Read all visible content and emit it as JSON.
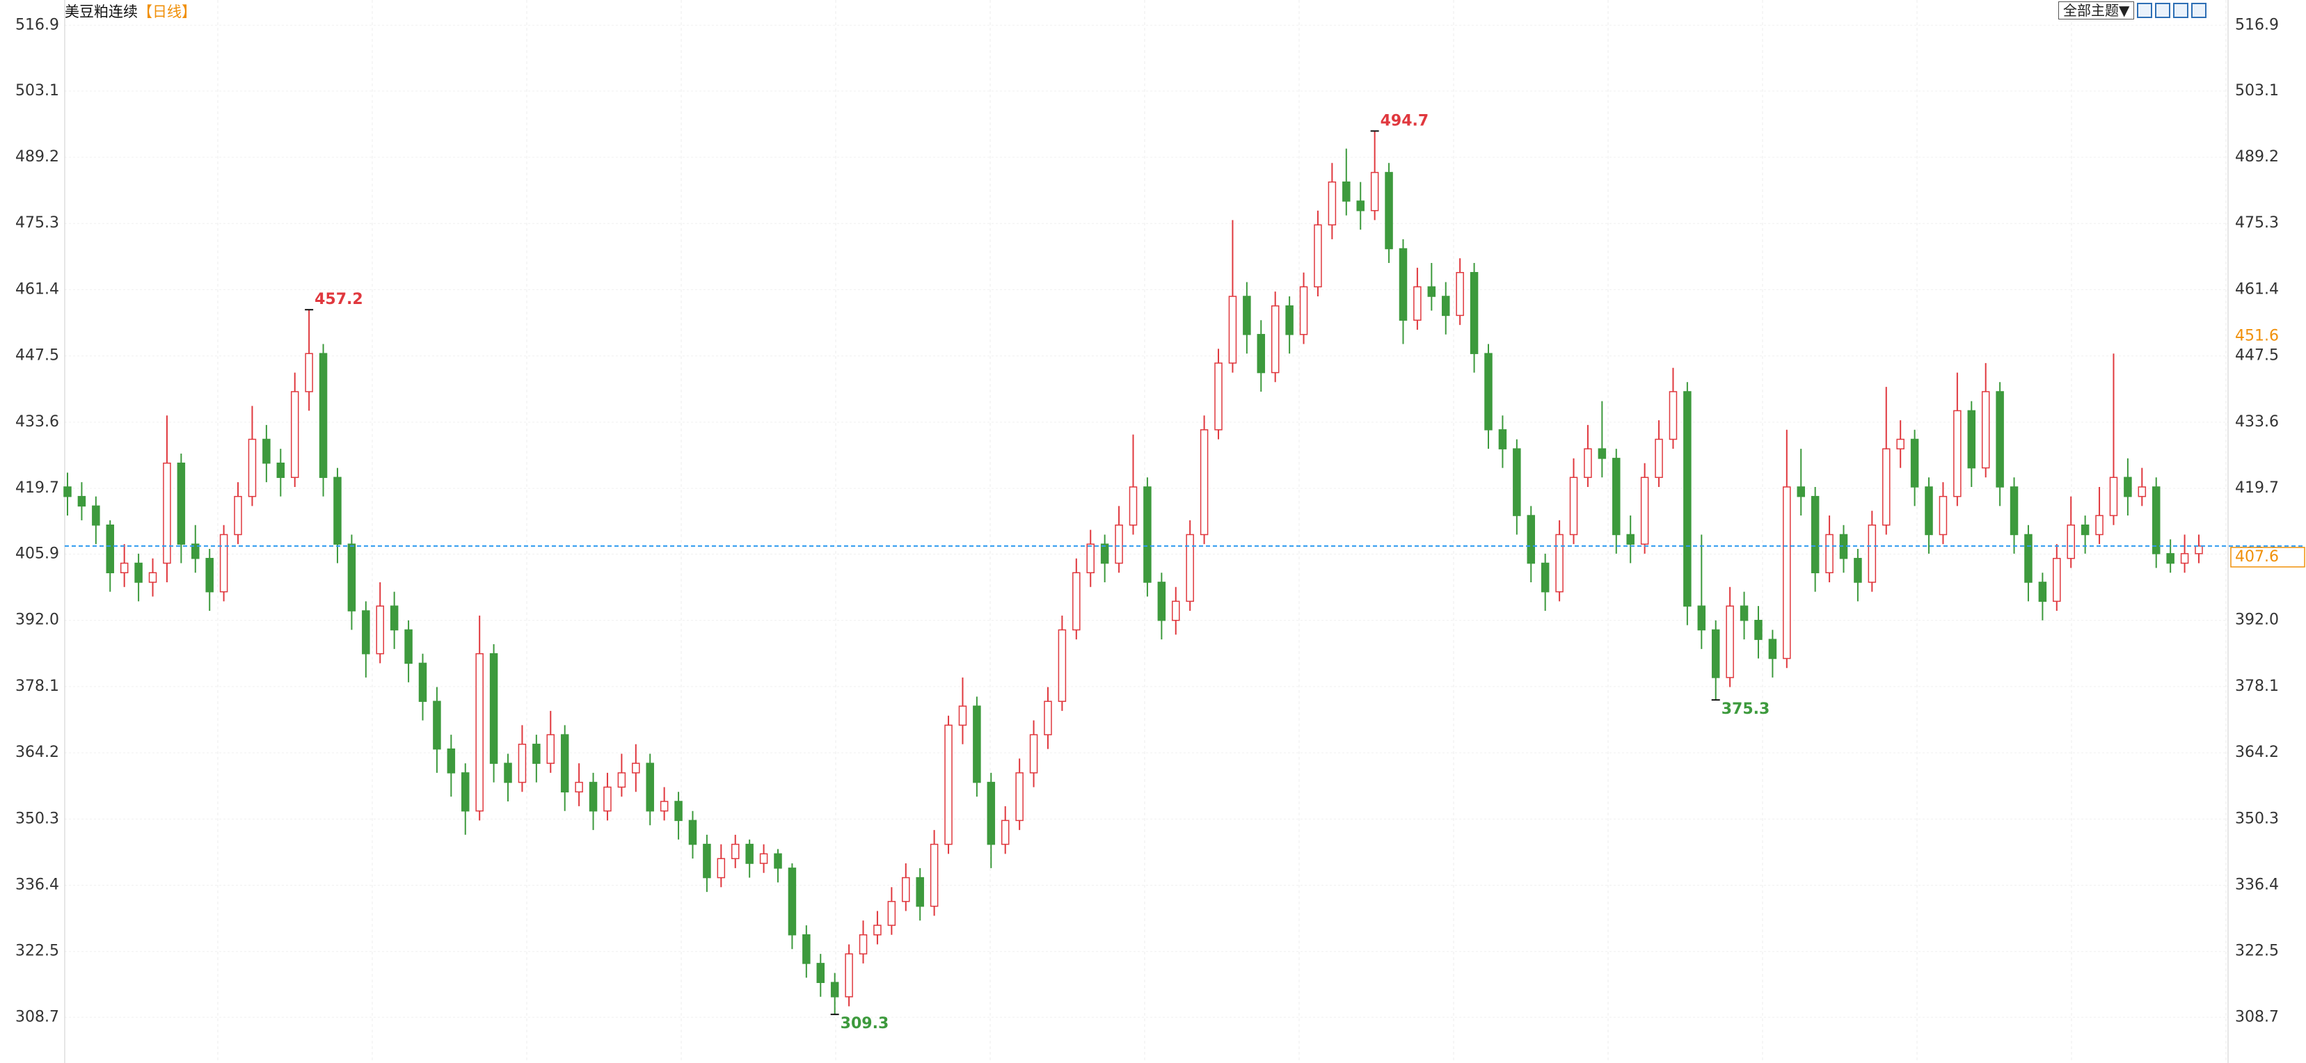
{
  "chart_data": {
    "type": "candlestick",
    "title": "美豆粕连续",
    "period": "【日线】",
    "theme_button": "全部主题▼",
    "up_color": "#e0383e",
    "down_color": "#3d9a3d",
    "ylim": [
      299.1,
      522.2
    ],
    "yticks": [
      516.9,
      503.1,
      489.2,
      475.3,
      461.4,
      447.5,
      433.6,
      419.7,
      405.9,
      {
        "value": 392,
        "label": "392.0"
      },
      378.1,
      364.2,
      350.3,
      336.4,
      322.5,
      308.7
    ],
    "grid": true,
    "last_price": 407.6,
    "marker_price": 451.6,
    "annotations": [
      457.2,
      494.7,
      375.3,
      309.3
    ],
    "ohlc": [
      [
        420,
        423,
        414,
        418
      ],
      [
        418,
        421,
        413,
        416
      ],
      [
        416,
        418,
        408,
        412
      ],
      [
        412,
        413,
        398,
        402
      ],
      [
        402,
        408,
        399,
        404
      ],
      [
        404,
        406,
        396,
        400
      ],
      [
        400,
        405,
        397,
        402
      ],
      [
        404,
        435,
        400,
        425
      ],
      [
        425,
        427,
        404,
        408
      ],
      [
        408,
        412,
        402,
        405
      ],
      [
        405,
        407,
        394,
        398
      ],
      [
        398,
        412,
        396,
        410
      ],
      [
        410,
        421,
        408,
        418
      ],
      [
        418,
        437,
        416,
        430
      ],
      [
        430,
        433,
        421,
        425
      ],
      [
        425,
        428,
        418,
        422
      ],
      [
        422,
        444,
        420,
        440
      ],
      [
        440,
        457.2,
        436,
        448
      ],
      [
        448,
        450,
        418,
        422
      ],
      [
        422,
        424,
        404,
        408
      ],
      [
        408,
        410,
        390,
        394
      ],
      [
        394,
        396,
        380,
        385
      ],
      [
        385,
        400,
        383,
        395
      ],
      [
        395,
        398,
        386,
        390
      ],
      [
        390,
        392,
        379,
        383
      ],
      [
        383,
        385,
        371,
        375
      ],
      [
        375,
        378,
        360,
        365
      ],
      [
        365,
        368,
        355,
        360
      ],
      [
        360,
        362,
        347,
        352
      ],
      [
        352,
        393,
        350,
        385
      ],
      [
        385,
        387,
        358,
        362
      ],
      [
        362,
        364,
        354,
        358
      ],
      [
        358,
        370,
        356,
        366
      ],
      [
        366,
        368,
        358,
        362
      ],
      [
        362,
        373,
        360,
        368
      ],
      [
        368,
        370,
        352,
        356
      ],
      [
        356,
        362,
        353,
        358
      ],
      [
        358,
        360,
        348,
        352
      ],
      [
        352,
        360,
        350,
        357
      ],
      [
        357,
        364,
        355,
        360
      ],
      [
        360,
        366,
        356,
        362
      ],
      [
        362,
        364,
        349,
        352
      ],
      [
        352,
        357,
        350,
        354
      ],
      [
        354,
        356,
        346,
        350
      ],
      [
        350,
        352,
        342,
        345
      ],
      [
        345,
        347,
        335,
        338
      ],
      [
        338,
        345,
        336,
        342
      ],
      [
        342,
        347,
        340,
        345
      ],
      [
        345,
        346,
        338,
        341
      ],
      [
        341,
        345,
        339,
        343
      ],
      [
        343,
        344,
        337,
        340
      ],
      [
        340,
        341,
        323,
        326
      ],
      [
        326,
        328,
        317,
        320
      ],
      [
        320,
        322,
        313,
        316
      ],
      [
        316,
        318,
        309.3,
        313
      ],
      [
        313,
        324,
        311,
        322
      ],
      [
        322,
        329,
        320,
        326
      ],
      [
        326,
        331,
        324,
        328
      ],
      [
        328,
        336,
        326,
        333
      ],
      [
        333,
        341,
        331,
        338
      ],
      [
        338,
        340,
        329,
        332
      ],
      [
        332,
        348,
        330,
        345
      ],
      [
        345,
        372,
        343,
        370
      ],
      [
        370,
        380,
        366,
        374
      ],
      [
        374,
        376,
        355,
        358
      ],
      [
        358,
        360,
        340,
        345
      ],
      [
        345,
        353,
        343,
        350
      ],
      [
        350,
        363,
        348,
        360
      ],
      [
        360,
        371,
        357,
        368
      ],
      [
        368,
        378,
        365,
        375
      ],
      [
        375,
        393,
        373,
        390
      ],
      [
        390,
        405,
        388,
        402
      ],
      [
        402,
        411,
        399,
        408
      ],
      [
        408,
        410,
        400,
        404
      ],
      [
        404,
        416,
        402,
        412
      ],
      [
        412,
        431,
        410,
        420
      ],
      [
        420,
        422,
        397,
        400
      ],
      [
        400,
        402,
        388,
        392
      ],
      [
        392,
        399,
        389,
        396
      ],
      [
        396,
        413,
        394,
        410
      ],
      [
        410,
        435,
        408,
        432
      ],
      [
        432,
        449,
        430,
        446
      ],
      [
        446,
        476,
        444,
        460
      ],
      [
        460,
        463,
        448,
        452
      ],
      [
        452,
        455,
        440,
        444
      ],
      [
        444,
        461,
        442,
        458
      ],
      [
        458,
        460,
        448,
        452
      ],
      [
        452,
        465,
        450,
        462
      ],
      [
        462,
        478,
        460,
        475
      ],
      [
        475,
        488,
        472,
        484
      ],
      [
        484,
        491,
        477,
        480
      ],
      [
        480,
        484,
        474,
        478
      ],
      [
        478,
        494.7,
        476,
        486
      ],
      [
        486,
        488,
        467,
        470
      ],
      [
        470,
        472,
        450,
        455
      ],
      [
        455,
        466,
        453,
        462
      ],
      [
        462,
        467,
        457,
        460
      ],
      [
        460,
        463,
        452,
        456
      ],
      [
        456,
        468,
        454,
        465
      ],
      [
        465,
        467,
        444,
        448
      ],
      [
        448,
        450,
        428,
        432
      ],
      [
        432,
        435,
        424,
        428
      ],
      [
        428,
        430,
        410,
        414
      ],
      [
        414,
        416,
        400,
        404
      ],
      [
        404,
        406,
        394,
        398
      ],
      [
        398,
        413,
        396,
        410
      ],
      [
        410,
        426,
        408,
        422
      ],
      [
        422,
        433,
        420,
        428
      ],
      [
        428,
        438,
        422,
        426
      ],
      [
        426,
        428,
        406,
        410
      ],
      [
        410,
        414,
        404,
        408
      ],
      [
        408,
        425,
        406,
        422
      ],
      [
        422,
        434,
        420,
        430
      ],
      [
        430,
        445,
        428,
        440
      ],
      [
        440,
        442,
        391,
        395
      ],
      [
        395,
        410,
        386,
        390
      ],
      [
        390,
        392,
        375.3,
        380
      ],
      [
        380,
        399,
        378,
        395
      ],
      [
        395,
        398,
        388,
        392
      ],
      [
        392,
        395,
        384,
        388
      ],
      [
        388,
        390,
        380,
        384
      ],
      [
        384,
        432,
        382,
        420
      ],
      [
        420,
        428,
        414,
        418
      ],
      [
        418,
        420,
        398,
        402
      ],
      [
        402,
        414,
        400,
        410
      ],
      [
        410,
        412,
        402,
        405
      ],
      [
        405,
        407,
        396,
        400
      ],
      [
        400,
        415,
        398,
        412
      ],
      [
        412,
        441,
        410,
        428
      ],
      [
        428,
        434,
        424,
        430
      ],
      [
        430,
        432,
        416,
        420
      ],
      [
        420,
        422,
        406,
        410
      ],
      [
        410,
        421,
        408,
        418
      ],
      [
        418,
        444,
        416,
        436
      ],
      [
        436,
        438,
        420,
        424
      ],
      [
        424,
        446,
        422,
        440
      ],
      [
        440,
        442,
        416,
        420
      ],
      [
        420,
        422,
        406,
        410
      ],
      [
        410,
        412,
        396,
        400
      ],
      [
        400,
        402,
        392,
        396
      ],
      [
        396,
        408,
        394,
        405
      ],
      [
        405,
        418,
        403,
        412
      ],
      [
        412,
        414,
        406,
        410
      ],
      [
        410,
        420,
        408,
        414
      ],
      [
        414,
        448,
        412,
        422
      ],
      [
        422,
        426,
        414,
        418
      ],
      [
        418,
        424,
        416,
        420
      ],
      [
        420,
        422,
        403,
        406
      ],
      [
        406,
        409,
        402,
        404
      ],
      [
        404,
        410,
        402,
        406
      ],
      [
        406,
        410,
        404,
        407.6
      ]
    ]
  }
}
